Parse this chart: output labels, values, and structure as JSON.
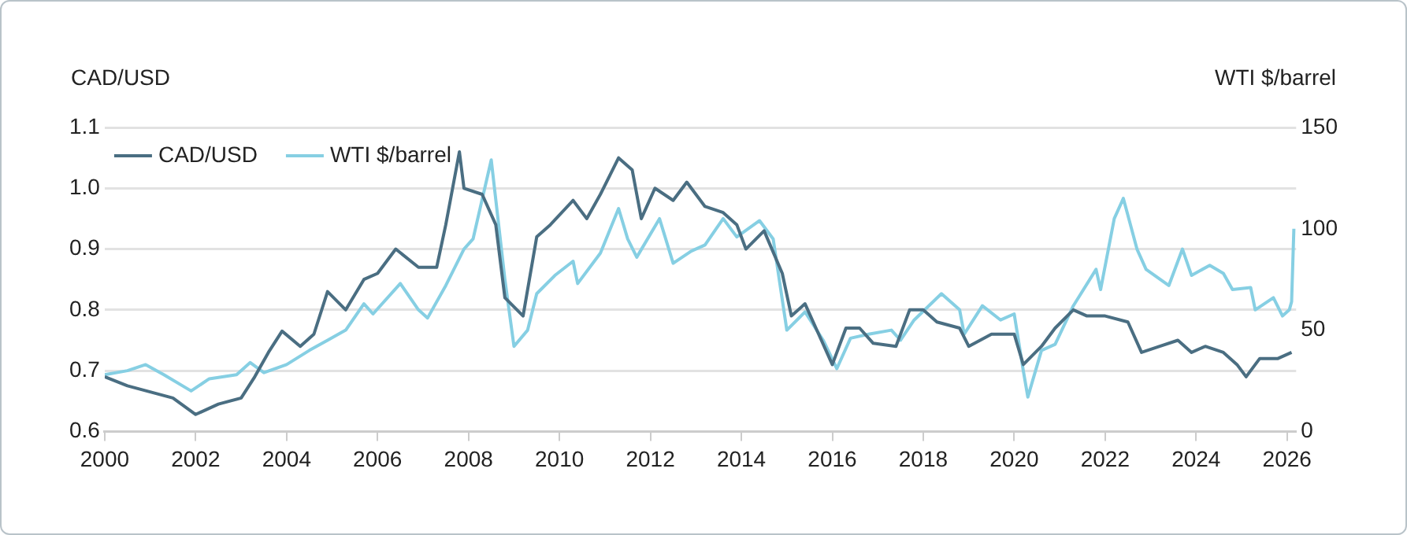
{
  "chart_data": {
    "type": "line",
    "ylabel": "CAD/USD",
    "y2label": "WTI $/barrel",
    "legend": "top left",
    "grid": "y",
    "marker": "none",
    "line_style": "solid",
    "xlim": [
      2000,
      2026.2
    ],
    "xticks": [
      2000,
      2002,
      2004,
      2006,
      2008,
      2010,
      2012,
      2014,
      2016,
      2018,
      2020,
      2022,
      2024,
      2026
    ],
    "ylim": [
      0.6,
      1.1
    ],
    "yticks": [
      0.6,
      0.7,
      0.8,
      0.9,
      {
        "value": 1,
        "label": "1.0"
      },
      1.1
    ],
    "y2lim": [
      0,
      150
    ],
    "y2ticks": [
      0,
      50,
      100,
      150
    ],
    "series": [
      {
        "name": "CAD/USD",
        "color": "#4a6e82",
        "axis": "y",
        "x": [
          2000.0,
          2000.5,
          2001.0,
          2001.5,
          2002.0,
          2002.5,
          2003.0,
          2003.3,
          2003.6,
          2003.9,
          2004.3,
          2004.6,
          2004.9,
          2005.3,
          2005.7,
          2006.0,
          2006.4,
          2006.9,
          2007.3,
          2007.5,
          2007.8,
          2007.9,
          2008.3,
          2008.6,
          2008.8,
          2009.2,
          2009.5,
          2009.8,
          2010.3,
          2010.6,
          2010.9,
          2011.3,
          2011.6,
          2011.8,
          2012.1,
          2012.5,
          2012.8,
          2013.2,
          2013.6,
          2013.9,
          2014.1,
          2014.5,
          2014.9,
          2015.1,
          2015.4,
          2015.7,
          2016.0,
          2016.3,
          2016.6,
          2016.9,
          2017.4,
          2017.7,
          2018.0,
          2018.3,
          2018.8,
          2019.0,
          2019.5,
          2020.0,
          2020.2,
          2020.6,
          2020.9,
          2021.3,
          2021.6,
          2022.0,
          2022.5,
          2022.8,
          2023.2,
          2023.6,
          2023.9,
          2024.2,
          2024.6,
          2024.9,
          2025.1,
          2025.4,
          2025.8,
          2026.1
        ],
        "values": [
          0.69,
          0.675,
          0.665,
          0.655,
          0.628,
          0.645,
          0.655,
          0.69,
          0.73,
          0.765,
          0.74,
          0.76,
          0.83,
          0.8,
          0.85,
          0.86,
          0.9,
          0.87,
          0.87,
          0.94,
          1.06,
          1.0,
          0.99,
          0.94,
          0.82,
          0.79,
          0.92,
          0.94,
          0.98,
          0.95,
          0.99,
          1.05,
          1.03,
          0.95,
          1.0,
          0.98,
          1.01,
          0.97,
          0.96,
          0.94,
          0.9,
          0.93,
          0.86,
          0.79,
          0.81,
          0.76,
          0.71,
          0.77,
          0.77,
          0.745,
          0.74,
          0.8,
          0.8,
          0.78,
          0.77,
          0.74,
          0.76,
          0.76,
          0.71,
          0.74,
          0.77,
          0.8,
          0.79,
          0.79,
          0.78,
          0.73,
          0.74,
          0.75,
          0.73,
          0.74,
          0.73,
          0.71,
          0.69,
          0.72,
          0.72,
          0.73
        ]
      },
      {
        "name": "WTI $/barrel",
        "color": "#86cfe3",
        "axis": "y2",
        "x": [
          2000.0,
          2000.5,
          2000.9,
          2001.3,
          2001.9,
          2002.3,
          2002.9,
          2003.2,
          2003.5,
          2004.0,
          2004.5,
          2004.9,
          2005.3,
          2005.7,
          2005.9,
          2006.5,
          2006.9,
          2007.1,
          2007.5,
          2007.9,
          2008.1,
          2008.5,
          2008.8,
          2009.0,
          2009.3,
          2009.5,
          2009.9,
          2010.3,
          2010.4,
          2010.9,
          2011.3,
          2011.5,
          2011.7,
          2012.2,
          2012.5,
          2012.9,
          2013.2,
          2013.6,
          2013.9,
          2014.4,
          2014.7,
          2015.0,
          2015.4,
          2015.8,
          2016.1,
          2016.4,
          2016.8,
          2017.3,
          2017.5,
          2017.8,
          2018.4,
          2018.8,
          2018.9,
          2019.3,
          2019.7,
          2020.0,
          2020.2,
          2020.3,
          2020.6,
          2020.9,
          2021.3,
          2021.8,
          2021.9,
          2022.2,
          2022.4,
          2022.7,
          2022.9,
          2023.4,
          2023.7,
          2023.9,
          2024.3,
          2024.6,
          2024.8,
          2025.2,
          2025.3,
          2025.7,
          2025.9,
          2026.05,
          2026.1,
          2026.15
        ],
        "values": [
          28,
          30,
          33,
          28,
          20,
          26,
          28,
          34,
          29,
          33,
          40,
          45,
          50,
          63,
          58,
          73,
          60,
          56,
          72,
          90,
          95,
          134,
          75,
          42,
          50,
          68,
          77,
          84,
          73,
          88,
          110,
          95,
          86,
          105,
          83,
          89,
          92,
          105,
          96,
          104,
          95,
          50,
          59,
          45,
          31,
          46,
          48,
          50,
          45,
          55,
          68,
          60,
          48,
          62,
          55,
          58,
          30,
          17,
          40,
          43,
          62,
          80,
          70,
          105,
          115,
          90,
          80,
          72,
          90,
          77,
          82,
          78,
          70,
          71,
          60,
          66,
          57,
          60,
          64,
          100
        ]
      }
    ]
  }
}
